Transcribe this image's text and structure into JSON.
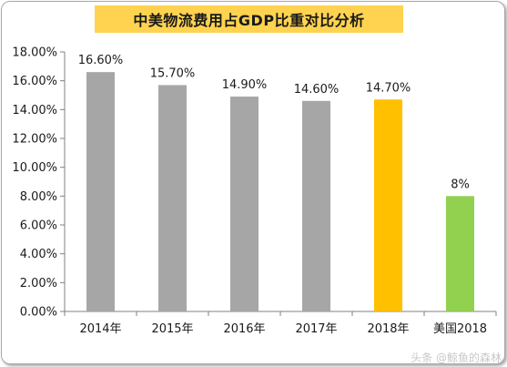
{
  "chart_data": {
    "type": "bar",
    "title": "中美物流费用占GDP比重对比分析",
    "categories": [
      "2014年",
      "2015年",
      "2016年",
      "2017年",
      "2018年",
      "美国2018"
    ],
    "values": [
      16.6,
      15.7,
      14.9,
      14.6,
      14.7,
      8.0
    ],
    "data_labels": [
      "16.60%",
      "15.70%",
      "14.90%",
      "14.60%",
      "14.70%",
      "8%"
    ],
    "bar_colors": [
      "#a6a6a6",
      "#a6a6a6",
      "#a6a6a6",
      "#a6a6a6",
      "#ffc000",
      "#92d050"
    ],
    "ylim": [
      0,
      18
    ],
    "yticks": [
      0,
      2,
      4,
      6,
      8,
      10,
      12,
      14,
      16,
      18
    ],
    "ytick_labels": [
      "0.00%",
      "2.00%",
      "4.00%",
      "6.00%",
      "8.00%",
      "10.00%",
      "12.00%",
      "14.00%",
      "16.00%",
      "18.00%"
    ],
    "grid": false,
    "xlabel": "",
    "ylabel": ""
  },
  "watermark": "头条 @鲸鱼的森林"
}
